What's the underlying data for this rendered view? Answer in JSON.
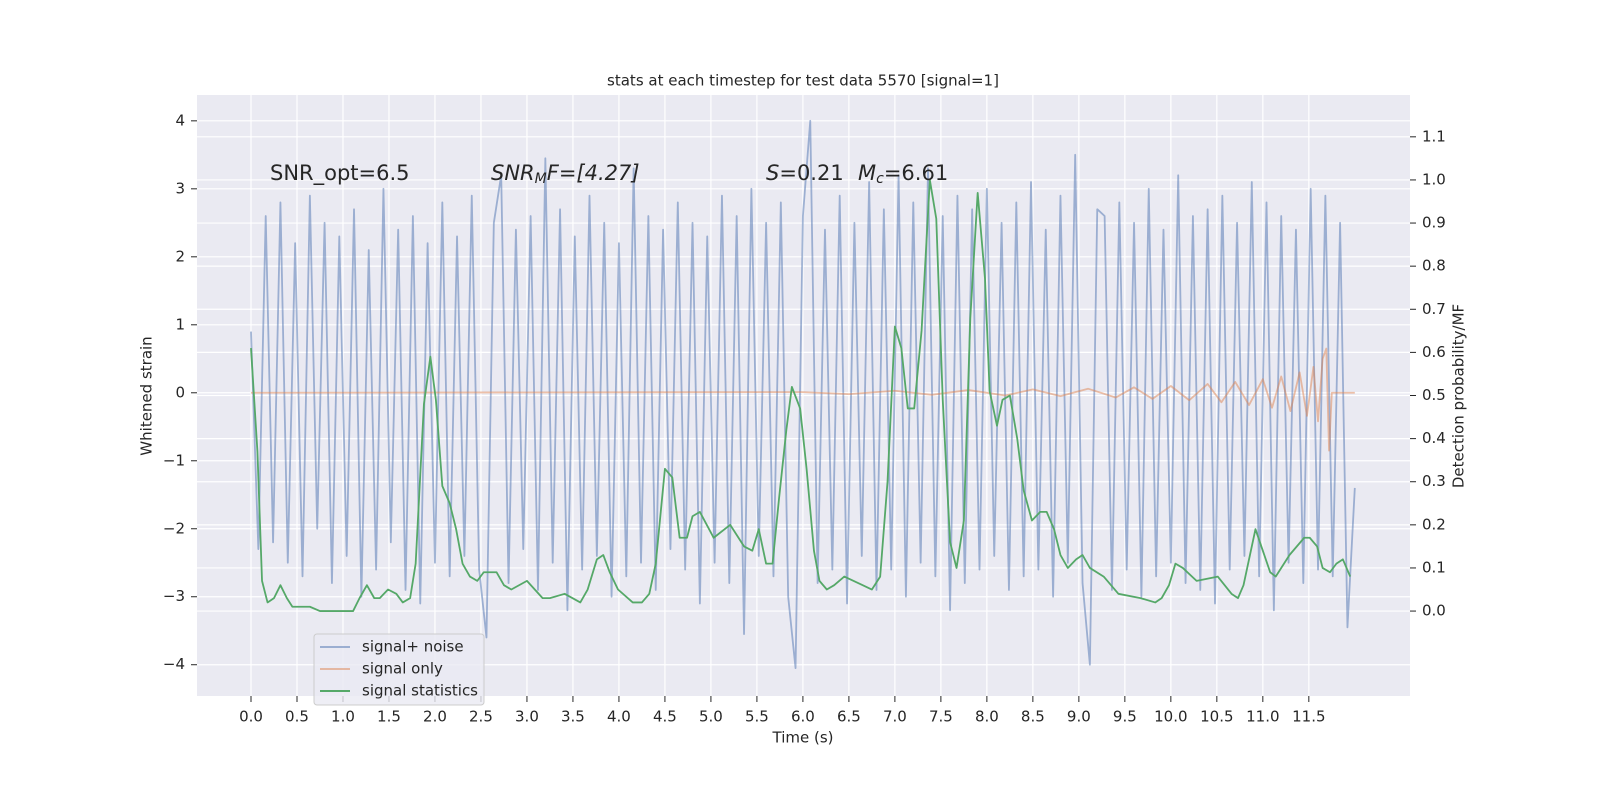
{
  "chart_data": {
    "type": "line",
    "title": "stats at each timestep for test data 5570 [signal=1]",
    "xlabel": "Time (s)",
    "ylabel": "Whitened strain",
    "y2label": "Detection probability/MF",
    "annotations": [
      {
        "parts": [
          "SNR_opt=6.5"
        ]
      },
      {
        "parts": [
          "SNR",
          "M",
          "F=[4.27]"
        ]
      },
      {
        "parts": [
          "S",
          "=0.21"
        ]
      },
      {
        "parts": [
          "M",
          "c",
          "=6.61"
        ]
      }
    ],
    "xlim": [
      -0.587,
      12.6
    ],
    "ylim": [
      -4.46,
      4.38
    ],
    "y2lim": [
      -0.197,
      1.197
    ],
    "xticks": [
      {
        "value": 0,
        "label": "0.0"
      },
      0.5,
      {
        "value": 1,
        "label": "1.0"
      },
      1.5,
      {
        "value": 2,
        "label": "2.0"
      },
      2.5,
      {
        "value": 3,
        "label": "3.0"
      },
      3.5,
      {
        "value": 4,
        "label": "4.0"
      },
      4.5,
      {
        "value": 5,
        "label": "5.0"
      },
      5.5,
      {
        "value": 6,
        "label": "6.0"
      },
      6.5,
      {
        "value": 7,
        "label": "7.0"
      },
      7.5,
      {
        "value": 8,
        "label": "8.0"
      },
      8.5,
      {
        "value": 9,
        "label": "9.0"
      },
      9.5,
      {
        "value": 10,
        "label": "10.0"
      },
      10.5,
      {
        "value": 11,
        "label": "11.0"
      },
      11.5
    ],
    "yticks": [
      {
        "value": -4,
        "label": "−4"
      },
      {
        "value": -3,
        "label": "−3"
      },
      {
        "value": -2,
        "label": "−2"
      },
      {
        "value": -1,
        "label": "−1"
      },
      0,
      1,
      2,
      3,
      4
    ],
    "y2ticks": [
      {
        "value": 0,
        "label": "0.0"
      },
      0.1,
      0.2,
      0.3,
      0.4,
      0.5,
      0.6,
      0.7,
      0.8,
      0.9,
      {
        "value": 1,
        "label": "1.0"
      },
      1.1
    ],
    "grid": true,
    "legend": "lower left",
    "series": [
      {
        "name": "signal+ noise",
        "color": "#4c72b0",
        "opacity": 0.5,
        "x": [
          0,
          0.08,
          0.16,
          0.24,
          0.32,
          0.4,
          0.48,
          0.56,
          0.64,
          0.72,
          0.8,
          0.88,
          0.96,
          1.04,
          1.12,
          1.2,
          1.28,
          1.36,
          1.44,
          1.52,
          1.6,
          1.68,
          1.76,
          1.84,
          1.92,
          2.0,
          2.08,
          2.16,
          2.24,
          2.32,
          2.4,
          2.48,
          2.56,
          2.64,
          2.72,
          2.8,
          2.88,
          2.96,
          3.04,
          3.12,
          3.2,
          3.28,
          3.36,
          3.44,
          3.52,
          3.6,
          3.68,
          3.76,
          3.84,
          3.92,
          4.0,
          4.08,
          4.16,
          4.24,
          4.32,
          4.4,
          4.48,
          4.56,
          4.64,
          4.72,
          4.8,
          4.88,
          4.96,
          5.04,
          5.12,
          5.2,
          5.28,
          5.36,
          5.44,
          5.52,
          5.6,
          5.68,
          5.76,
          5.84,
          5.92,
          6.0,
          6.08,
          6.16,
          6.24,
          6.32,
          6.4,
          6.48,
          6.56,
          6.64,
          6.72,
          6.8,
          6.88,
          6.96,
          7.04,
          7.12,
          7.2,
          7.28,
          7.36,
          7.44,
          7.52,
          7.6,
          7.68,
          7.76,
          7.84,
          7.92,
          8.0,
          8.08,
          8.16,
          8.24,
          8.32,
          8.4,
          8.48,
          8.56,
          8.64,
          8.72,
          8.8,
          8.88,
          8.96,
          9.04,
          9.12,
          9.2,
          9.28,
          9.36,
          9.44,
          9.52,
          9.6,
          9.68,
          9.76,
          9.84,
          9.92,
          10.0,
          10.08,
          10.16,
          10.24,
          10.32,
          10.4,
          10.48,
          10.56,
          10.64,
          10.72,
          10.8,
          10.88,
          10.96,
          11.04,
          11.12,
          11.2,
          11.28,
          11.36,
          11.44,
          11.52,
          11.6,
          11.68,
          11.76,
          11.84,
          11.92,
          12.0
        ],
        "values": [
          0.9,
          -2.3,
          2.6,
          -2.2,
          2.8,
          -2.5,
          2.2,
          -2.7,
          2.9,
          -2.0,
          2.5,
          -2.8,
          2.3,
          -2.4,
          2.7,
          -3.0,
          2.1,
          -2.6,
          3.0,
          -2.2,
          2.4,
          -2.9,
          2.6,
          -3.1,
          2.2,
          -2.5,
          2.8,
          -2.7,
          2.3,
          -2.4,
          2.9,
          -2.6,
          -3.6,
          2.5,
          3.2,
          -2.8,
          2.4,
          -2.3,
          2.6,
          -2.9,
          3.45,
          -2.5,
          2.7,
          -3.2,
          2.3,
          -2.6,
          2.9,
          -2.4,
          2.5,
          -3.0,
          2.2,
          -2.7,
          3.3,
          -2.5,
          2.6,
          -2.9,
          2.4,
          -2.3,
          2.8,
          -2.6,
          2.5,
          -3.1,
          2.3,
          -2.5,
          2.9,
          -2.8,
          2.6,
          -3.55,
          3.0,
          -2.4,
          2.5,
          -2.7,
          2.8,
          -3.0,
          -4.05,
          2.6,
          4.0,
          -2.8,
          2.4,
          -2.6,
          2.9,
          -3.1,
          2.5,
          -2.4,
          3.1,
          -2.9,
          2.7,
          -2.6,
          3.2,
          -3.0,
          2.8,
          -2.5,
          3.3,
          -2.7,
          2.6,
          -3.2,
          2.9,
          -2.8,
          2.7,
          -2.6,
          3.0,
          -2.4,
          2.5,
          -2.9,
          2.8,
          -2.7,
          3.1,
          -2.6,
          2.4,
          -3.0,
          2.9,
          -2.5,
          3.5,
          -2.8,
          -4.0,
          2.7,
          2.6,
          -2.9,
          2.8,
          -2.6,
          2.5,
          -3.0,
          3.0,
          -2.7,
          2.4,
          -2.5,
          3.2,
          -2.8,
          2.6,
          -2.9,
          2.7,
          -3.1,
          2.9,
          -2.6,
          2.5,
          -2.4,
          3.1,
          -2.7,
          2.8,
          -3.2,
          2.6,
          -2.5,
          2.4,
          -2.8,
          3.0,
          -2.6,
          2.9,
          -2.7,
          2.5,
          -3.45,
          -1.4
        ]
      },
      {
        "name": "signal only",
        "color": "#dd8452",
        "opacity": 0.5,
        "x": [
          0,
          6.0,
          6.5,
          7.0,
          7.4,
          7.8,
          8.2,
          8.5,
          8.8,
          9.1,
          9.4,
          9.6,
          9.8,
          10.0,
          10.2,
          10.4,
          10.55,
          10.7,
          10.85,
          11.0,
          11.1,
          11.2,
          11.3,
          11.4,
          11.48,
          11.55,
          11.6,
          11.65,
          11.69,
          11.72,
          11.75,
          12.0
        ],
        "values": [
          0,
          0.01,
          -0.02,
          0.03,
          -0.03,
          0.04,
          -0.04,
          0.05,
          -0.05,
          0.06,
          -0.07,
          0.08,
          -0.09,
          0.1,
          -0.11,
          0.13,
          -0.14,
          0.16,
          -0.18,
          0.2,
          -0.22,
          0.24,
          -0.27,
          0.3,
          -0.34,
          0.38,
          -0.42,
          0.5,
          0.65,
          -0.85,
          0,
          0
        ]
      },
      {
        "name": "signal statistics",
        "color": "#55a868",
        "opacity": 1,
        "axis": "y2",
        "x": [
          0,
          0.07,
          0.12,
          0.18,
          0.25,
          0.32,
          0.39,
          0.45,
          0.64,
          0.75,
          1.11,
          1.18,
          1.26,
          1.34,
          1.4,
          1.49,
          1.58,
          1.65,
          1.73,
          1.79,
          1.88,
          1.95,
          2.01,
          2.08,
          2.16,
          2.23,
          2.3,
          2.38,
          2.46,
          2.53,
          2.67,
          2.75,
          2.83,
          3.0,
          3.17,
          3.25,
          3.41,
          3.58,
          3.66,
          3.76,
          3.83,
          3.9,
          3.99,
          4.15,
          4.25,
          4.33,
          4.4,
          4.5,
          4.58,
          4.66,
          4.74,
          4.8,
          4.88,
          5.03,
          5.21,
          5.36,
          5.45,
          5.52,
          5.6,
          5.67,
          5.74,
          5.82,
          5.88,
          5.97,
          6.04,
          6.12,
          6.18,
          6.26,
          6.34,
          6.45,
          6.65,
          6.75,
          6.84,
          6.92,
          7.0,
          7.07,
          7.14,
          7.21,
          7.29,
          7.38,
          7.45,
          7.52,
          7.6,
          7.67,
          7.75,
          7.82,
          7.9,
          7.98,
          8.03,
          8.11,
          8.17,
          8.25,
          8.33,
          8.4,
          8.49,
          8.58,
          8.65,
          8.73,
          8.8,
          8.88,
          8.97,
          9.04,
          9.12,
          9.27,
          9.43,
          9.67,
          9.83,
          9.9,
          9.98,
          10.05,
          10.13,
          10.28,
          10.51,
          10.66,
          10.73,
          10.79,
          10.86,
          10.92,
          11.0,
          11.08,
          11.14,
          11.29,
          11.45,
          11.51,
          11.59,
          11.65,
          11.73,
          11.8,
          11.87,
          11.95
        ],
        "values": [
          0.61,
          0.37,
          0.07,
          0.02,
          0.03,
          0.06,
          0.03,
          0.01,
          0.01,
          0,
          0,
          0.03,
          0.06,
          0.03,
          0.03,
          0.05,
          0.04,
          0.02,
          0.03,
          0.11,
          0.48,
          0.59,
          0.49,
          0.29,
          0.25,
          0.19,
          0.11,
          0.08,
          0.07,
          0.09,
          0.09,
          0.06,
          0.05,
          0.07,
          0.03,
          0.03,
          0.04,
          0.02,
          0.05,
          0.12,
          0.13,
          0.09,
          0.05,
          0.02,
          0.02,
          0.04,
          0.11,
          0.33,
          0.31,
          0.17,
          0.17,
          0.22,
          0.23,
          0.17,
          0.2,
          0.15,
          0.14,
          0.19,
          0.11,
          0.11,
          0.26,
          0.42,
          0.52,
          0.47,
          0.33,
          0.14,
          0.07,
          0.05,
          0.06,
          0.08,
          0.06,
          0.05,
          0.08,
          0.3,
          0.66,
          0.61,
          0.47,
          0.47,
          0.65,
          1.0,
          0.91,
          0.49,
          0.16,
          0.1,
          0.21,
          0.68,
          0.97,
          0.77,
          0.51,
          0.43,
          0.49,
          0.5,
          0.4,
          0.28,
          0.21,
          0.23,
          0.23,
          0.19,
          0.13,
          0.1,
          0.12,
          0.13,
          0.1,
          0.08,
          0.04,
          0.03,
          0.02,
          0.03,
          0.06,
          0.11,
          0.1,
          0.07,
          0.08,
          0.04,
          0.03,
          0.06,
          0.13,
          0.19,
          0.14,
          0.09,
          0.08,
          0.13,
          0.17,
          0.17,
          0.15,
          0.1,
          0.09,
          0.11,
          0.12,
          0.08
        ]
      }
    ]
  }
}
